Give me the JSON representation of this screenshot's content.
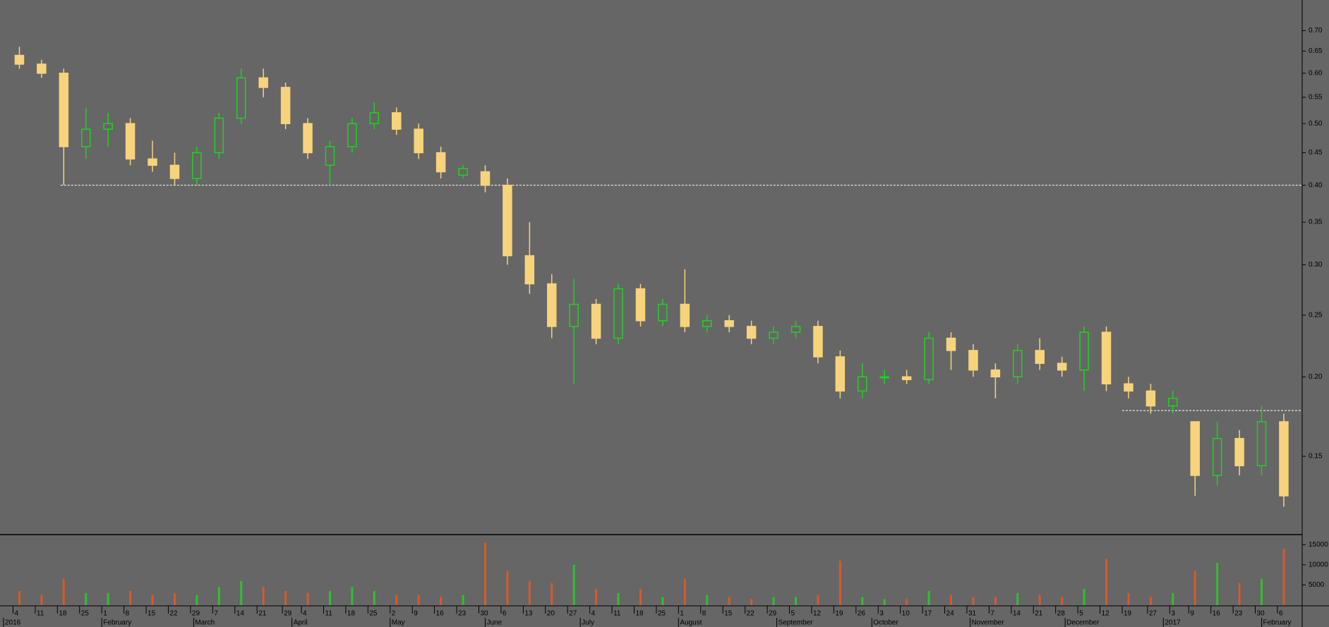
{
  "chart_data": [
    {
      "type": "candlestick",
      "log_scale": true,
      "up_color": "#22d022",
      "down_color": "#f7d37c",
      "x": [
        "2016-01-04",
        "2016-01-11",
        "2016-01-18",
        "2016-01-25",
        "2016-02-01",
        "2016-02-08",
        "2016-02-15",
        "2016-02-22",
        "2016-02-29",
        "2016-03-07",
        "2016-03-14",
        "2016-03-21",
        "2016-03-28",
        "2016-04-04",
        "2016-04-11",
        "2016-04-18",
        "2016-04-25",
        "2016-05-02",
        "2016-05-09",
        "2016-05-16",
        "2016-05-23",
        "2016-05-30",
        "2016-06-06",
        "2016-06-13",
        "2016-06-20",
        "2016-06-27",
        "2016-07-04",
        "2016-07-11",
        "2016-07-18",
        "2016-07-25",
        "2016-08-01",
        "2016-08-08",
        "2016-08-15",
        "2016-08-22",
        "2016-08-29",
        "2016-09-05",
        "2016-09-12",
        "2016-09-19",
        "2016-09-26",
        "2016-10-03",
        "2016-10-10",
        "2016-10-17",
        "2016-10-24",
        "2016-10-31",
        "2016-11-07",
        "2016-11-14",
        "2016-11-21",
        "2016-11-28",
        "2016-12-05",
        "2016-12-12",
        "2016-12-19",
        "2016-12-26",
        "2017-01-02",
        "2017-01-09",
        "2017-01-16",
        "2017-01-23",
        "2017-01-30",
        "2017-02-06"
      ],
      "open": [
        0.64,
        0.62,
        0.6,
        0.46,
        0.49,
        0.5,
        0.44,
        0.43,
        0.41,
        0.45,
        0.51,
        0.59,
        0.57,
        0.5,
        0.43,
        0.46,
        0.5,
        0.52,
        0.49,
        0.45,
        0.415,
        0.42,
        0.4,
        0.31,
        0.28,
        0.24,
        0.26,
        0.23,
        0.275,
        0.245,
        0.26,
        0.24,
        0.245,
        0.24,
        0.23,
        0.235,
        0.24,
        0.215,
        0.19,
        0.2,
        0.2,
        0.198,
        0.23,
        0.22,
        0.205,
        0.2,
        0.22,
        0.21,
        0.205,
        0.235,
        0.195,
        0.19,
        0.18,
        0.17,
        0.14,
        0.16,
        0.145,
        0.17
      ],
      "high": [
        0.66,
        0.63,
        0.61,
        0.53,
        0.52,
        0.51,
        0.47,
        0.45,
        0.46,
        0.52,
        0.61,
        0.61,
        0.58,
        0.51,
        0.47,
        0.51,
        0.54,
        0.53,
        0.5,
        0.46,
        0.43,
        0.43,
        0.41,
        0.35,
        0.29,
        0.285,
        0.265,
        0.28,
        0.28,
        0.265,
        0.295,
        0.25,
        0.25,
        0.245,
        0.24,
        0.245,
        0.245,
        0.22,
        0.21,
        0.205,
        0.205,
        0.235,
        0.235,
        0.225,
        0.21,
        0.225,
        0.23,
        0.215,
        0.24,
        0.24,
        0.2,
        0.195,
        0.19,
        0.17,
        0.17,
        0.165,
        0.18,
        0.175
      ],
      "low": [
        0.61,
        0.59,
        0.4,
        0.44,
        0.46,
        0.43,
        0.42,
        0.4,
        0.4,
        0.44,
        0.5,
        0.55,
        0.49,
        0.44,
        0.4,
        0.45,
        0.49,
        0.48,
        0.44,
        0.41,
        0.41,
        0.39,
        0.3,
        0.27,
        0.23,
        0.195,
        0.225,
        0.225,
        0.24,
        0.24,
        0.235,
        0.235,
        0.235,
        0.225,
        0.225,
        0.23,
        0.21,
        0.185,
        0.185,
        0.195,
        0.195,
        0.195,
        0.205,
        0.2,
        0.185,
        0.195,
        0.205,
        0.2,
        0.19,
        0.19,
        0.185,
        0.175,
        0.175,
        0.13,
        0.135,
        0.14,
        0.14,
        0.125
      ],
      "close": [
        0.62,
        0.6,
        0.46,
        0.49,
        0.5,
        0.44,
        0.43,
        0.41,
        0.45,
        0.51,
        0.59,
        0.57,
        0.5,
        0.45,
        0.46,
        0.5,
        0.52,
        0.49,
        0.45,
        0.42,
        0.425,
        0.4,
        0.31,
        0.28,
        0.24,
        0.26,
        0.23,
        0.275,
        0.245,
        0.26,
        0.24,
        0.245,
        0.24,
        0.23,
        0.235,
        0.24,
        0.215,
        0.19,
        0.2,
        0.2,
        0.198,
        0.23,
        0.22,
        0.205,
        0.2,
        0.22,
        0.21,
        0.205,
        0.235,
        0.195,
        0.19,
        0.18,
        0.185,
        0.14,
        0.16,
        0.145,
        0.17,
        0.13
      ],
      "ylim": [
        0.113,
        0.782
      ],
      "yticks": [
        0.15,
        {
          "value": 0.2,
          "label": "0.20"
        },
        0.25,
        {
          "value": 0.3,
          "label": "0.30"
        },
        0.35,
        {
          "value": 0.4,
          "label": "0.40"
        },
        0.45,
        {
          "value": 0.5,
          "label": "0.50"
        },
        0.55,
        {
          "value": 0.6,
          "label": "0.60"
        },
        0.65,
        {
          "value": 0.7,
          "label": "0.70"
        }
      ],
      "reference_lines": [
        {
          "value": 0.4,
          "from": "2016-01-19"
        },
        {
          "value": 0.177,
          "from": "2016-12-19"
        }
      ],
      "xticks": [
        {
          "value": "2016-01-04",
          "label": "4"
        },
        {
          "value": "2016-01-11",
          "label": "11"
        },
        {
          "value": "2016-01-18",
          "label": "18"
        },
        {
          "value": "2016-01-25",
          "label": "25"
        },
        {
          "value": "2016-02-01",
          "label": "1"
        },
        {
          "value": "2016-02-08",
          "label": "8"
        },
        {
          "value": "2016-02-15",
          "label": "15"
        },
        {
          "value": "2016-02-22",
          "label": "22"
        },
        {
          "value": "2016-02-29",
          "label": "29"
        },
        {
          "value": "2016-03-07",
          "label": "7"
        },
        {
          "value": "2016-03-14",
          "label": "14"
        },
        {
          "value": "2016-03-21",
          "label": "21"
        },
        {
          "value": "2016-03-29",
          "label": "29"
        },
        {
          "value": "2016-04-04",
          "label": "4"
        },
        {
          "value": "2016-04-11",
          "label": "11"
        },
        {
          "value": "2016-04-18",
          "label": "18"
        },
        {
          "value": "2016-04-25",
          "label": "25"
        },
        {
          "value": "2016-05-02",
          "label": "2"
        },
        {
          "value": "2016-05-09",
          "label": "9"
        },
        {
          "value": "2016-05-16",
          "label": "16"
        },
        {
          "value": "2016-05-23",
          "label": "23"
        },
        {
          "value": "2016-05-30",
          "label": "30"
        },
        {
          "value": "2016-06-06",
          "label": "6"
        },
        {
          "value": "2016-06-13",
          "label": "13"
        },
        {
          "value": "2016-06-20",
          "label": "20"
        },
        {
          "value": "2016-06-27",
          "label": "27"
        },
        {
          "value": "2016-07-04",
          "label": "4"
        },
        {
          "value": "2016-07-11",
          "label": "11"
        },
        {
          "value": "2016-07-18",
          "label": "18"
        },
        {
          "value": "2016-07-25",
          "label": "25"
        },
        {
          "value": "2016-08-01",
          "label": "1"
        },
        {
          "value": "2016-08-08",
          "label": "8"
        },
        {
          "value": "2016-08-15",
          "label": "15"
        },
        {
          "value": "2016-08-22",
          "label": "22"
        },
        {
          "value": "2016-08-29",
          "label": "29"
        },
        {
          "value": "2016-09-05",
          "label": "5"
        },
        {
          "value": "2016-09-12",
          "label": "12"
        },
        {
          "value": "2016-09-19",
          "label": "19"
        },
        {
          "value": "2016-09-26",
          "label": "26"
        },
        {
          "value": "2016-10-03",
          "label": "3"
        },
        {
          "value": "2016-10-10",
          "label": "10"
        },
        {
          "value": "2016-10-17",
          "label": "17"
        },
        {
          "value": "2016-10-24",
          "label": "24"
        },
        {
          "value": "2016-10-31",
          "label": "31"
        },
        {
          "value": "2016-11-07",
          "label": "7"
        },
        {
          "value": "2016-11-14",
          "label": "14"
        },
        {
          "value": "2016-11-21",
          "label": "21"
        },
        {
          "value": "2016-11-28",
          "label": "28"
        },
        {
          "value": "2016-12-05",
          "label": "5"
        },
        {
          "value": "2016-12-12",
          "label": "12"
        },
        {
          "value": "2016-12-19",
          "label": "19"
        },
        {
          "value": "2016-12-27",
          "label": "27"
        },
        {
          "value": "2017-01-03",
          "label": "3"
        },
        {
          "value": "2017-01-09",
          "label": "9"
        },
        {
          "value": "2017-01-16",
          "label": "16"
        },
        {
          "value": "2017-01-23",
          "label": "23"
        },
        {
          "value": "2017-01-30",
          "label": "30"
        },
        {
          "value": "2017-02-06",
          "label": "6"
        }
      ],
      "month_ticks": [
        {
          "value": "2016-01-01",
          "label": "2016"
        },
        {
          "value": "2016-02-01",
          "label": "February"
        },
        {
          "value": "2016-03-01",
          "label": "March"
        },
        {
          "value": "2016-04-01",
          "label": "April"
        },
        {
          "value": "2016-05-02",
          "label": "May"
        },
        {
          "value": "2016-06-01",
          "label": "June"
        },
        {
          "value": "2016-07-01",
          "label": "July"
        },
        {
          "value": "2016-08-01",
          "label": "August"
        },
        {
          "value": "2016-09-01",
          "label": "September"
        },
        {
          "value": "2016-10-01",
          "label": "October"
        },
        {
          "value": "2016-11-01",
          "label": "November"
        },
        {
          "value": "2016-12-01",
          "label": "December"
        },
        {
          "value": "2017-01-01",
          "label": "2017"
        },
        {
          "value": "2017-02-01",
          "label": "February"
        }
      ]
    },
    {
      "type": "bar",
      "up_color": "#2fc02f",
      "down_color": "#d65a2a",
      "values": [
        3500,
        2500,
        6500,
        3000,
        3000,
        3500,
        2500,
        3000,
        2500,
        4500,
        6000,
        4500,
        3500,
        3000,
        3500,
        4500,
        3500,
        2500,
        2500,
        2000,
        2500,
        15500,
        8500,
        6000,
        5500,
        10000,
        4000,
        3000,
        4000,
        2000,
        6500,
        2500,
        2000,
        1500,
        2000,
        2000,
        2500,
        11000,
        2000,
        1500,
        1500,
        3500,
        2500,
        2000,
        2000,
        3000,
        2500,
        2000,
        4000,
        11500,
        3000,
        2000,
        3000,
        8500,
        10500,
        5500,
        6500,
        14000
      ],
      "ylim": [
        0,
        17500
      ],
      "yticks": [
        5000,
        10000,
        15000
      ]
    }
  ]
}
